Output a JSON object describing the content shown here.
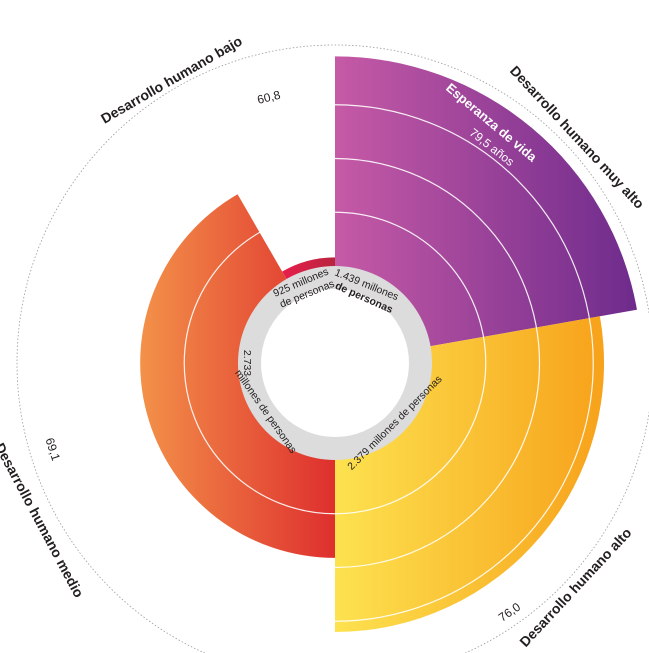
{
  "chart_data": {
    "type": "radial-bar",
    "legend": {
      "title": "Esperanza de vida",
      "value": "79,5 años"
    },
    "categories": [
      "Desarrollo humano muy alto",
      "Desarrollo humano alto",
      "Desarrollo humano medio",
      "Desarrollo humano bajo"
    ],
    "values": [
      79.5,
      76.0,
      69.1,
      60.8
    ],
    "value_labels": [
      "",
      "76,0",
      "69,1",
      "60,8"
    ],
    "population_millions": [
      1439,
      2379,
      2733,
      925
    ],
    "population_labels": [
      [
        "1.439 millones",
        "de personas"
      ],
      [
        "2.379 millones de personas"
      ],
      [
        "2.733",
        "millones de personas"
      ],
      [
        "925 millones",
        "de personas"
      ]
    ],
    "colors": [
      [
        "#c65aa6",
        "#6e2b8c"
      ],
      [
        "#fde24f",
        "#f7a21b"
      ],
      [
        "#f39149",
        "#de2f2e"
      ],
      [
        "#e81f4c",
        "#b8243e"
      ]
    ],
    "ring_colors": {
      "hole": "#ffffff",
      "band": "#dcdcdc",
      "grid": "#ffffff",
      "outline": "#9a9a9a"
    }
  }
}
